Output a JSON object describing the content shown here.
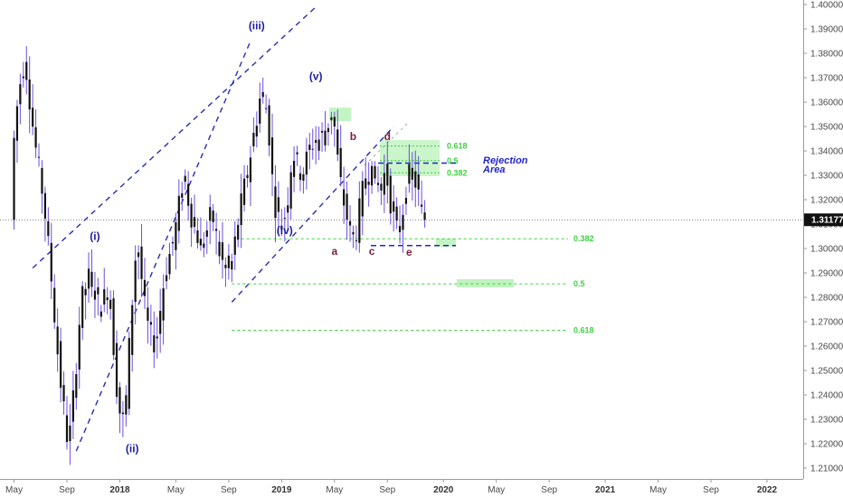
{
  "chart_data": {
    "type": "candlestick",
    "price_axis": {
      "ticks": [
        "1.40000",
        "1.39000",
        "1.38000",
        "1.37000",
        "1.36000",
        "1.35000",
        "1.34000",
        "1.33000",
        "1.32000",
        "1.31000",
        "1.30000",
        "1.29000",
        "1.28000",
        "1.27000",
        "1.26000",
        "1.25000",
        "1.24000",
        "1.23000",
        "1.22000",
        "1.21000"
      ],
      "tick_values": [
        1.4,
        1.39,
        1.38,
        1.37,
        1.36,
        1.35,
        1.34,
        1.33,
        1.32,
        1.31,
        1.3,
        1.29,
        1.28,
        1.27,
        1.26,
        1.25,
        1.24,
        1.23,
        1.22,
        1.21
      ],
      "range": [
        1.2045,
        1.4015
      ]
    },
    "time_axis": {
      "labels": [
        "May",
        "Sep",
        "2018",
        "May",
        "Sep",
        "2019",
        "May",
        "Sep",
        "2020",
        "May",
        "Sep",
        "2021",
        "May",
        "Sep",
        "2022"
      ],
      "label_weeks": [
        0,
        17,
        34,
        52,
        69,
        86,
        103,
        120,
        138,
        155,
        172,
        190,
        207,
        224,
        242
      ]
    },
    "current_price": {
      "label": "1.31177",
      "value": 1.31177
    },
    "price_series": [
      {
        "week": 0,
        "price": 1.338
      },
      {
        "week": 2,
        "price": 1.365
      },
      {
        "week": 4,
        "price": 1.378
      },
      {
        "week": 7,
        "price": 1.345
      },
      {
        "week": 10,
        "price": 1.32
      },
      {
        "week": 12,
        "price": 1.295
      },
      {
        "week": 15,
        "price": 1.25
      },
      {
        "week": 18,
        "price": 1.218
      },
      {
        "week": 20,
        "price": 1.245
      },
      {
        "week": 22,
        "price": 1.278
      },
      {
        "week": 25,
        "price": 1.29
      },
      {
        "week": 28,
        "price": 1.275
      },
      {
        "week": 31,
        "price": 1.285
      },
      {
        "week": 34,
        "price": 1.235
      },
      {
        "week": 36,
        "price": 1.228
      },
      {
        "week": 38,
        "price": 1.27
      },
      {
        "week": 40,
        "price": 1.305
      },
      {
        "week": 43,
        "price": 1.27
      },
      {
        "week": 46,
        "price": 1.26
      },
      {
        "week": 49,
        "price": 1.29
      },
      {
        "week": 52,
        "price": 1.305
      },
      {
        "week": 55,
        "price": 1.33
      },
      {
        "week": 58,
        "price": 1.31
      },
      {
        "week": 61,
        "price": 1.3
      },
      {
        "week": 64,
        "price": 1.315
      },
      {
        "week": 67,
        "price": 1.295
      },
      {
        "week": 70,
        "price": 1.29
      },
      {
        "week": 73,
        "price": 1.315
      },
      {
        "week": 76,
        "price": 1.335
      },
      {
        "week": 78,
        "price": 1.35
      },
      {
        "week": 80,
        "price": 1.365
      },
      {
        "week": 82,
        "price": 1.355
      },
      {
        "week": 84,
        "price": 1.32
      },
      {
        "week": 86,
        "price": 1.31
      },
      {
        "week": 88,
        "price": 1.315
      },
      {
        "week": 90,
        "price": 1.34
      },
      {
        "week": 93,
        "price": 1.33
      },
      {
        "week": 96,
        "price": 1.343
      },
      {
        "week": 99,
        "price": 1.345
      },
      {
        "week": 101,
        "price": 1.35
      },
      {
        "week": 103,
        "price": 1.356
      },
      {
        "week": 105,
        "price": 1.33
      },
      {
        "week": 107,
        "price": 1.315
      },
      {
        "week": 109,
        "price": 1.306
      },
      {
        "week": 110,
        "price": 1.303
      },
      {
        "week": 112,
        "price": 1.32
      },
      {
        "week": 114,
        "price": 1.333
      },
      {
        "week": 116,
        "price": 1.33
      },
      {
        "week": 118,
        "price": 1.325
      },
      {
        "week": 120,
        "price": 1.332
      },
      {
        "week": 122,
        "price": 1.315
      },
      {
        "week": 124,
        "price": 1.305
      },
      {
        "week": 126,
        "price": 1.32
      },
      {
        "week": 128,
        "price": 1.333
      },
      {
        "week": 130,
        "price": 1.325
      },
      {
        "week": 132,
        "price": 1.3118
      }
    ],
    "channel_lines": [
      {
        "w1": 20,
        "p1": 1.217,
        "w2": 76,
        "p2": 1.385,
        "style": "dashed"
      },
      {
        "w1": 6,
        "p1": 1.292,
        "w2": 97,
        "p2": 1.399,
        "style": "dashed"
      },
      {
        "w1": 70,
        "p1": 1.278,
        "w2": 122,
        "p2": 1.35,
        "style": "dashed"
      }
    ],
    "wave_labels": [
      {
        "text": "(i)",
        "week": 26,
        "price": 1.3036
      },
      {
        "text": "(ii)",
        "week": 38,
        "price": 1.2165
      },
      {
        "text": "(iii)",
        "week": 78,
        "price": 1.3898
      },
      {
        "text": "(iv)",
        "week": 87,
        "price": 1.306
      },
      {
        "text": "(v)",
        "week": 97,
        "price": 1.369
      },
      {
        "text": "a",
        "week": 103,
        "price": 1.2975
      },
      {
        "text": "b",
        "week": 109,
        "price": 1.3445
      },
      {
        "text": "c",
        "week": 115,
        "price": 1.2975
      },
      {
        "text": "d",
        "week": 120,
        "price": 1.3445
      },
      {
        "text": "e",
        "week": 127,
        "price": 1.297
      }
    ],
    "fib_levels": [
      {
        "label": "0.382",
        "value": 1.304,
        "from_week": 73
      },
      {
        "label": "0.5",
        "value": 1.2855,
        "from_week": 70
      },
      {
        "label": "0.618",
        "value": 1.2665,
        "from_week": 70
      }
    ],
    "upper_fibs": [
      {
        "label": "0.618",
        "value": 1.342
      },
      {
        "label": "0.5",
        "value": 1.336
      },
      {
        "label": "0.382",
        "value": 1.331
      }
    ],
    "rejection_area": {
      "line1": "Rejection",
      "line2": "Area",
      "value": 1.335
    },
    "support_line": {
      "value": 1.3012
    }
  }
}
